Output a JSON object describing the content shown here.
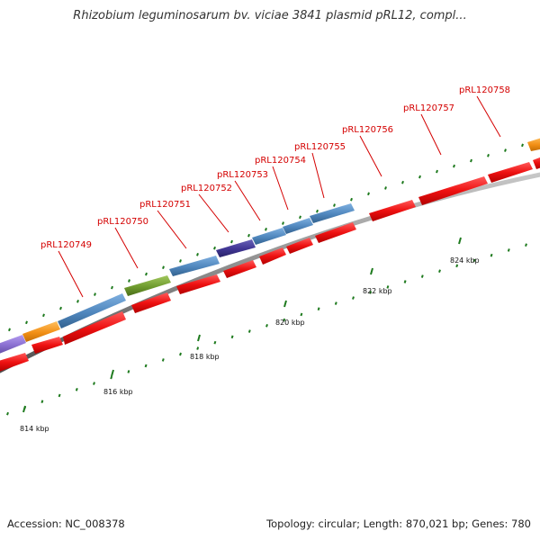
{
  "title": "Rhizobium leguminosarum bv. viciae 3841 plasmid pRL12, compl...",
  "footer": {
    "accession": "Accession: NC_008378",
    "stats": "Topology: circular; Length: 870,021 bp; Genes: 780"
  },
  "colors": {
    "backbone": "#8a8a8a",
    "forward_cds": "#ee1111",
    "tick": "#1e7a1e",
    "label": "#d40000",
    "blue_feature": "#4f86bd",
    "green_feature": "#6e9b2e",
    "purple_feature": "#3f3592",
    "lavender_feature": "#8a6fd1",
    "orange_feature": "#f28f15"
  },
  "scale": {
    "unit": "kbp",
    "major_ticks": [
      {
        "kbp": 814,
        "label": "814 kbp"
      },
      {
        "kbp": 816,
        "label": "816 kbp"
      },
      {
        "kbp": 818,
        "label": "818 kbp"
      },
      {
        "kbp": 820,
        "label": "820 kbp"
      },
      {
        "kbp": 822,
        "label": "822 kbp"
      },
      {
        "kbp": 824,
        "label": "824 kbp"
      }
    ]
  },
  "gene_labels": [
    {
      "id": "pRL120749",
      "label": "pRL120749"
    },
    {
      "id": "pRL120750",
      "label": "pRL120750"
    },
    {
      "id": "pRL120751",
      "label": "pRL120751"
    },
    {
      "id": "pRL120752",
      "label": "pRL120752"
    },
    {
      "id": "pRL120753",
      "label": "pRL120753"
    },
    {
      "id": "pRL120754",
      "label": "pRL120754"
    },
    {
      "id": "pRL120755",
      "label": "pRL120755"
    },
    {
      "id": "pRL120756",
      "label": "pRL120756"
    },
    {
      "id": "pRL120757",
      "label": "pRL120757"
    },
    {
      "id": "pRL120758",
      "label": "pRL120758"
    }
  ]
}
